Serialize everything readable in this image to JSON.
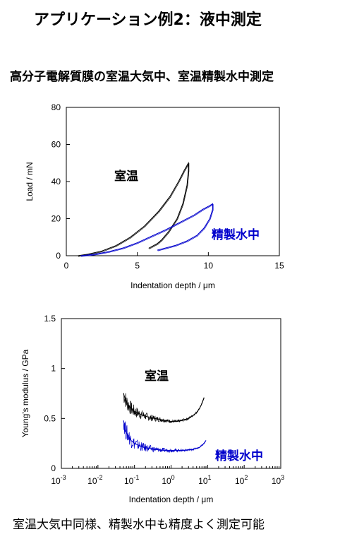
{
  "title": "アプリケーション例2：液中測定",
  "subtitle": "高分子電解質膜の室温大気中、室温精製水中測定",
  "footer": "室温大気中同様、精製水中も精度よく測定可能",
  "colors": {
    "black_series": "#000000",
    "blue_series": "#0000cc"
  },
  "chart_data": [
    {
      "type": "line",
      "xlabel": "Indentation depth / μm",
      "ylabel": "Load / mN",
      "xlim": [
        0,
        15
      ],
      "ylim": [
        0,
        80
      ],
      "xticks": [
        0,
        5,
        10,
        15
      ],
      "yticks": [
        0,
        20,
        40,
        60,
        80
      ],
      "grid": false,
      "annotations": [
        {
          "text": "室温",
          "color": "#000000"
        },
        {
          "text": "精製水中",
          "color": "#0000cc"
        }
      ],
      "series": [
        {
          "color": "#000000",
          "loading": [
            [
              0.8,
              0
            ],
            [
              1.5,
              0.8
            ],
            [
              2.5,
              2.5
            ],
            [
              3.5,
              5.5
            ],
            [
              4.5,
              10
            ],
            [
              5.5,
              16
            ],
            [
              6.5,
              24
            ],
            [
              7.3,
              32
            ],
            [
              7.9,
              40
            ],
            [
              8.3,
              46
            ],
            [
              8.6,
              50
            ]
          ],
          "unloading": [
            [
              8.6,
              50
            ],
            [
              8.6,
              46
            ],
            [
              8.5,
              38
            ],
            [
              8.2,
              28
            ],
            [
              7.8,
              20
            ],
            [
              7.2,
              13
            ],
            [
              6.7,
              8.5
            ],
            [
              6.4,
              6.5
            ],
            [
              5.8,
              4
            ]
          ]
        },
        {
          "color": "#0000cc",
          "loading": [
            [
              1.0,
              0
            ],
            [
              2,
              0.8
            ],
            [
              3,
              2.2
            ],
            [
              4,
              4.2
            ],
            [
              5,
              7
            ],
            [
              6,
              10.5
            ],
            [
              7,
              14
            ],
            [
              8,
              18
            ],
            [
              9,
              22
            ],
            [
              9.6,
              25
            ],
            [
              10.1,
              27
            ]
          ],
          "unloading": [
            [
              10.1,
              27
            ],
            [
              10.3,
              28
            ],
            [
              10.3,
              25
            ],
            [
              10.1,
              20
            ],
            [
              9.7,
              15
            ],
            [
              9.2,
              11
            ],
            [
              8.5,
              8
            ],
            [
              7.7,
              5.6
            ],
            [
              7,
              4.2
            ],
            [
              6.4,
              3
            ]
          ]
        }
      ]
    },
    {
      "type": "line",
      "xlabel": "Indentation depth / μm",
      "ylabel": "Young's modulus / GPa",
      "xscale": "log",
      "xlim": [
        0.001,
        1000
      ],
      "ylim": [
        0,
        1.5
      ],
      "xtick_labels": [
        "10-3",
        "10-2",
        "10-1",
        "100",
        "101",
        "102",
        "103"
      ],
      "yticks": [
        0,
        0.5,
        1,
        1.5
      ],
      "grid": false,
      "annotations": [
        {
          "text": "室温",
          "color": "#000000"
        },
        {
          "text": "精製水中",
          "color": "#0000cc"
        }
      ],
      "series": [
        {
          "color": "#000000",
          "x": [
            0.05,
            0.055,
            0.06,
            0.07,
            0.08,
            0.1,
            0.13,
            0.18,
            0.25,
            0.35,
            0.5,
            0.7,
            1.0,
            1.5,
            2,
            3,
            4,
            5,
            6,
            7,
            8
          ],
          "y": [
            0.75,
            0.7,
            0.67,
            0.63,
            0.6,
            0.57,
            0.55,
            0.53,
            0.51,
            0.5,
            0.49,
            0.48,
            0.47,
            0.47,
            0.48,
            0.5,
            0.53,
            0.56,
            0.6,
            0.65,
            0.71
          ]
        },
        {
          "color": "#0000cc",
          "x": [
            0.05,
            0.055,
            0.06,
            0.07,
            0.08,
            0.1,
            0.13,
            0.18,
            0.25,
            0.35,
            0.5,
            0.7,
            1.0,
            1.5,
            2,
            3,
            4,
            5,
            6,
            7,
            8,
            9
          ],
          "y": [
            0.48,
            0.4,
            0.36,
            0.32,
            0.28,
            0.25,
            0.23,
            0.21,
            0.2,
            0.19,
            0.185,
            0.18,
            0.18,
            0.18,
            0.18,
            0.185,
            0.19,
            0.2,
            0.21,
            0.23,
            0.25,
            0.28
          ]
        }
      ]
    }
  ]
}
